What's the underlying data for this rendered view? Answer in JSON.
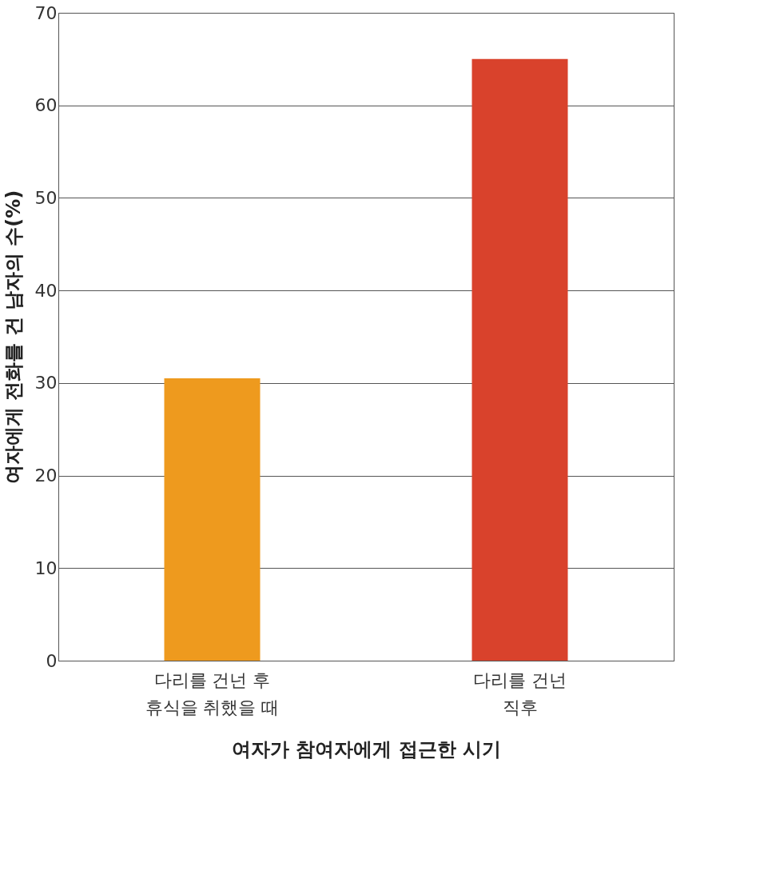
{
  "chart_data": {
    "type": "bar",
    "xlabel": "여자가 참여자에게 접근한 시기",
    "ylabel": "여자에게 전화를 건 남자의 수(%)",
    "categories": [
      "다리를 건넌 후\n휴식을 취했을 때",
      "다리를 건넌\n직후"
    ],
    "values": [
      30.5,
      65
    ],
    "colors": [
      "#ee9a1e",
      "#d9422c"
    ],
    "ylim": [
      0,
      70
    ],
    "yticks": [
      0,
      10,
      20,
      30,
      40,
      50,
      60,
      70
    ],
    "grid": "y"
  }
}
